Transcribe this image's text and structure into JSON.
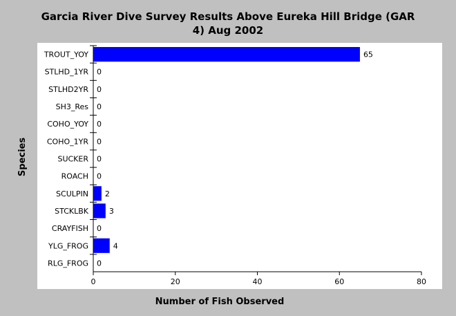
{
  "chart_data": {
    "type": "bar",
    "orientation": "horizontal",
    "title_lines": [
      "Garcia River Dive Survey Results Above Eureka Hill Bridge (GAR",
      "4) Aug 2002"
    ],
    "xlabel": "Number of Fish Observed",
    "ylabel": "Species",
    "categories": [
      "TROUT_YOY",
      "STLHD_1YR",
      "STLHD2YR",
      "SH3_Res",
      "COHO_YOY",
      "COHO_1YR",
      "SUCKER",
      "ROACH",
      "SCULPIN",
      "STCKLBK",
      "CRAYFISH",
      "YLG_FROG",
      "RLG_FROG"
    ],
    "values": [
      65,
      0,
      0,
      0,
      0,
      0,
      0,
      0,
      2,
      3,
      0,
      4,
      0
    ],
    "xlim": [
      0,
      80
    ],
    "xticks": [
      0,
      20,
      40,
      60,
      80
    ],
    "grid": false,
    "colors": {
      "background": "#c0c0c0",
      "plot_background": "#ffffff",
      "bar": "#0000ff"
    }
  }
}
